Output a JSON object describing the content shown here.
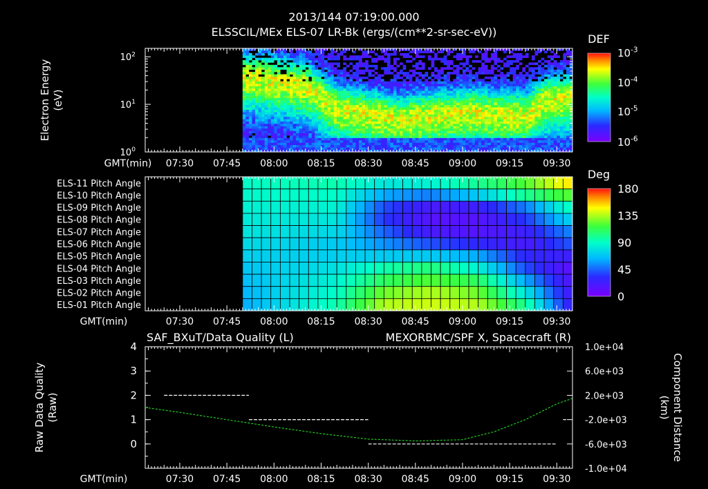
{
  "header": {
    "timestamp": "2013/144 07:19:00.000",
    "title": "ELSSCIL/MEx ELS-07 LR-Bk  (ergs/(cm**2-sr-sec-eV))"
  },
  "time_axis": {
    "label": "GMT(min)",
    "ticks": [
      "07:30",
      "07:45",
      "08:00",
      "08:15",
      "08:30",
      "08:45",
      "09:00",
      "09:15",
      "09:30"
    ]
  },
  "colors": {
    "background": "#000000",
    "axes": "#ffffff",
    "spacecraft_series": "#22cc22",
    "quality_series": "#ffffff"
  },
  "chart_data": [
    {
      "type": "heatmap",
      "name": "spectrogram",
      "ylabel": "Electron Energy\n(eV)",
      "ylabel_lines": [
        "Electron Energy",
        "(eV)"
      ],
      "yscale": "log",
      "ylim": [
        1,
        150
      ],
      "ytick_labels": [
        {
          "base": "10",
          "exp": "0",
          "value": 1
        },
        {
          "base": "10",
          "exp": "1",
          "value": 10
        },
        {
          "base": "10",
          "exp": "2",
          "value": 100
        }
      ],
      "xlim": [
        "07:19",
        "09:35"
      ],
      "data_start": "07:50",
      "colorbar": {
        "title": "DEF",
        "scale": "log",
        "labels": [
          {
            "base": "10",
            "exp": "-3",
            "value": 0.001
          },
          {
            "base": "10",
            "exp": "-4",
            "value": 0.0001
          },
          {
            "base": "10",
            "exp": "-5",
            "value": 1e-05
          },
          {
            "base": "10",
            "exp": "-6",
            "value": 1e-06
          }
        ]
      },
      "peak_energy_band_eV": [
        {
          "time": "07:50",
          "center": 40
        },
        {
          "time": "08:10",
          "center": 25
        },
        {
          "time": "08:20",
          "center": 8
        },
        {
          "time": "08:40",
          "center": 5
        },
        {
          "time": "09:00",
          "center": 7
        },
        {
          "time": "09:20",
          "center": 6
        },
        {
          "time": "09:25",
          "center": 12
        },
        {
          "time": "09:35",
          "center": 15
        }
      ]
    },
    {
      "type": "heatmap",
      "name": "pitch_angle",
      "row_labels": [
        "ELS-11 Pitch Angle",
        "ELS-10 Pitch Angle",
        "ELS-09 Pitch Angle",
        "ELS-08 Pitch Angle",
        "ELS-07 Pitch Angle",
        "ELS-06 Pitch Angle",
        "ELS-05 Pitch Angle",
        "ELS-04 Pitch Angle",
        "ELS-03 Pitch Angle",
        "ELS-02 Pitch Angle",
        "ELS-01 Pitch Angle"
      ],
      "xlim": [
        "07:19",
        "09:35"
      ],
      "data_start": "07:50",
      "colorbar": {
        "title": "Deg",
        "labels": [
          "180",
          "135",
          "90",
          "45",
          "0"
        ],
        "range": [
          0,
          180
        ]
      },
      "pitch_deg_at_times": {
        "times": [
          "07:50",
          "08:20",
          "08:35",
          "08:50",
          "09:05",
          "09:20",
          "09:33"
        ],
        "rows": [
          [
            90,
            95,
            80,
            85,
            100,
            120,
            150
          ],
          [
            88,
            90,
            60,
            50,
            70,
            100,
            120
          ],
          [
            85,
            85,
            40,
            20,
            25,
            50,
            90
          ],
          [
            82,
            80,
            35,
            15,
            15,
            35,
            70
          ],
          [
            80,
            75,
            45,
            20,
            15,
            25,
            50
          ],
          [
            76,
            70,
            55,
            40,
            30,
            20,
            40
          ],
          [
            72,
            72,
            70,
            70,
            60,
            30,
            25
          ],
          [
            68,
            78,
            95,
            105,
            85,
            40,
            15
          ],
          [
            65,
            85,
            110,
            120,
            110,
            60,
            20
          ],
          [
            62,
            90,
            125,
            135,
            125,
            80,
            25
          ],
          [
            60,
            95,
            135,
            140,
            135,
            100,
            30
          ]
        ]
      }
    },
    {
      "type": "line",
      "name": "lines",
      "title_left": "SAF_BXuT/Data Quality (L)",
      "title_right": "MEXORBMC/SPF X, Spacecraft (R)",
      "ylabel_left": "Raw Data Quality\n(Raw)",
      "ylabel_left_lines": [
        "Raw Data Quality",
        "(Raw)"
      ],
      "ylabel_right": "Component Distance\n(km)",
      "ylabel_right_lines": [
        "Component Distance",
        "(km)"
      ],
      "ylim_left": [
        -1,
        4
      ],
      "ytick_left": [
        "4",
        "3",
        "2",
        "1",
        "0"
      ],
      "ylim_right": [
        -10000,
        10000
      ],
      "ytick_right": [
        "1.0e+04",
        "6.0e+03",
        "2.0e+03",
        "-2.0e+03",
        "-6.0e+03",
        "-1.0e+04"
      ],
      "xlim": [
        "07:19",
        "09:35"
      ],
      "series": [
        {
          "name": "SAF_BXuT/Data Quality",
          "axis": "left",
          "segments": [
            {
              "x": [
                "07:25",
                "07:52"
              ],
              "y": 2
            },
            {
              "x": [
                "07:52",
                "08:30"
              ],
              "y": 1
            },
            {
              "x": [
                "08:30",
                "09:30"
              ],
              "y": 0
            },
            {
              "x": [
                "09:32",
                "09:33"
              ],
              "y": 1
            }
          ]
        },
        {
          "name": "MEXORBMC/SPF X, Spacecraft",
          "axis": "right",
          "x": [
            "07:19",
            "07:30",
            "07:45",
            "08:00",
            "08:15",
            "08:30",
            "08:45",
            "09:00",
            "09:10",
            "09:20",
            "09:30",
            "09:35"
          ],
          "y": [
            0,
            -800,
            -2000,
            -3200,
            -4300,
            -5200,
            -5500,
            -5300,
            -4000,
            -2000,
            600,
            1500
          ]
        }
      ]
    }
  ]
}
